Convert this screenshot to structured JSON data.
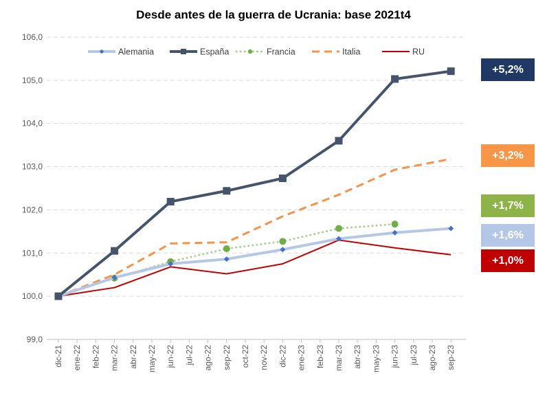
{
  "chart_data": {
    "type": "line",
    "title": "Desde antes de la guerra de Ucrania: base 2021t4",
    "xlabel": "",
    "ylabel": "",
    "ylim": [
      99,
      106
    ],
    "y_ticks": [
      "99,0",
      "100,0",
      "101,0",
      "102,0",
      "103,0",
      "104,0",
      "105,0",
      "106,0"
    ],
    "categories": [
      "dic-21",
      "ene-22",
      "feb-22",
      "mar-22",
      "abr-22",
      "may-22",
      "jun-22",
      "jul-22",
      "ago-22",
      "sep-22",
      "oct-22",
      "nov-22",
      "dic-22",
      "ene-23",
      "feb-23",
      "mar-23",
      "abr-23",
      "may-23",
      "jun-23",
      "jul-23",
      "ago-23",
      "sep-23"
    ],
    "legend_position": "top",
    "grid": "horizontal dashed",
    "series": [
      {
        "name": "Alemania",
        "color": "#B4C7E7",
        "marker_color": "#4472C4",
        "style": "solid-thick",
        "marker": "diamond",
        "values": [
          100.0,
          null,
          null,
          100.43,
          null,
          null,
          100.75,
          null,
          null,
          100.86,
          null,
          null,
          101.08,
          null,
          null,
          101.33,
          null,
          null,
          101.47,
          null,
          null,
          101.57
        ]
      },
      {
        "name": "España",
        "color": "#44546A",
        "marker_color": "#44546A",
        "style": "solid-thick",
        "marker": "square",
        "values": [
          100.0,
          null,
          null,
          101.05,
          null,
          null,
          102.19,
          null,
          null,
          102.44,
          null,
          null,
          102.73,
          null,
          null,
          103.6,
          null,
          null,
          105.03,
          null,
          null,
          105.21
        ]
      },
      {
        "name": "Francia",
        "color": "#A9D18E",
        "marker_color": "#70AD47",
        "style": "dotted",
        "marker": "circle",
        "values": [
          100.0,
          null,
          null,
          100.42,
          null,
          null,
          100.8,
          null,
          null,
          101.1,
          null,
          null,
          101.27,
          null,
          null,
          101.57,
          null,
          null,
          101.67,
          null,
          null,
          null
        ]
      },
      {
        "name": "Italia",
        "color": "#F4934A",
        "marker_color": "#F4934A",
        "style": "dashed",
        "marker": "none",
        "values": [
          100.0,
          null,
          null,
          100.5,
          null,
          null,
          101.22,
          null,
          null,
          101.25,
          null,
          null,
          101.85,
          null,
          null,
          102.35,
          null,
          null,
          102.93,
          null,
          null,
          103.18
        ]
      },
      {
        "name": "RU",
        "color": "#C00000",
        "marker_color": "#C00000",
        "style": "solid",
        "marker": "none",
        "values": [
          100.0,
          null,
          null,
          100.2,
          null,
          null,
          100.68,
          null,
          null,
          100.52,
          null,
          null,
          100.75,
          null,
          null,
          101.3,
          null,
          null,
          101.12,
          null,
          null,
          100.96
        ]
      }
    ],
    "annotations": [
      {
        "text": "+5,2%",
        "color": "#1F3864"
      },
      {
        "text": "+3,2%",
        "color": "#F79646"
      },
      {
        "text": "+1,7%",
        "color": "#8DB349"
      },
      {
        "text": "+1,6%",
        "color": "#B4C7E7"
      },
      {
        "text": "+1,0%",
        "color": "#C00000"
      }
    ]
  }
}
